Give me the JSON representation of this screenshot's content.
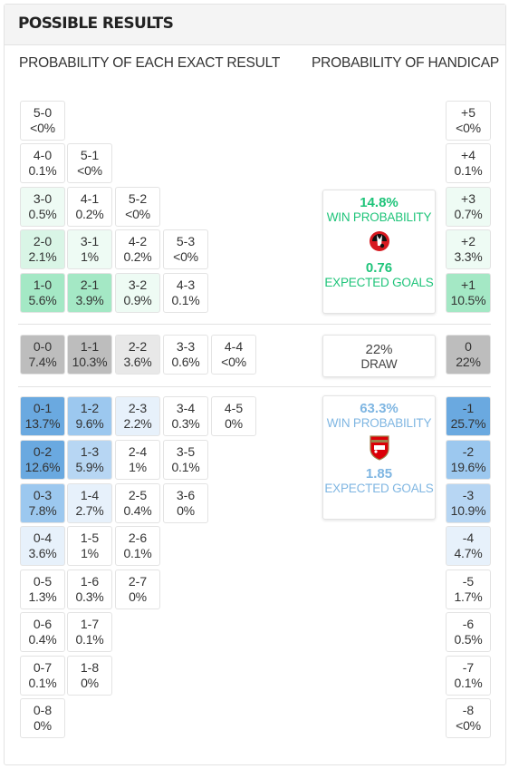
{
  "panel": {
    "title": "POSSIBLE RESULTS"
  },
  "headings": {
    "exact": "PROBABILITY OF EACH EXACT RESULT",
    "handicap": "PROBABILITY OF HANDICAP"
  },
  "colors": {
    "home_accent": "#1fc47a",
    "away_accent": "#7fb6e2",
    "draw_text": "#444444",
    "home_cell_shades": [
      "#ffffff",
      "#eefbf4",
      "#d9f5e6",
      "#a4e8c5"
    ],
    "away_cell_shades": [
      "#ffffff",
      "#e7f1fb",
      "#b7d6f3",
      "#9cc8ef",
      "#6aa9e0"
    ],
    "draw_cell_shades": [
      "#ffffff",
      "#e8e8e8",
      "#bdbdbd"
    ]
  },
  "home_team": {
    "badge_icon": "bournemouth-crest-icon",
    "win_probability": "14.8%",
    "win_label": "WIN PROBABILITY",
    "expected_goals": "0.76",
    "xg_label": "EXPECTED GOALS"
  },
  "draw": {
    "probability": "22%",
    "label": "DRAW"
  },
  "away_team": {
    "badge_icon": "arsenal-crest-icon",
    "win_probability": "63.3%",
    "win_label": "WIN PROBABILITY",
    "expected_goals": "1.85",
    "xg_label": "EXPECTED GOALS"
  },
  "home_scores": [
    [
      {
        "score": "5-0",
        "pct": "<0%",
        "shade": 0
      }
    ],
    [
      {
        "score": "4-0",
        "pct": "0.1%",
        "shade": 0
      },
      {
        "score": "5-1",
        "pct": "<0%",
        "shade": 0
      }
    ],
    [
      {
        "score": "3-0",
        "pct": "0.5%",
        "shade": 1
      },
      {
        "score": "4-1",
        "pct": "0.2%",
        "shade": 0
      },
      {
        "score": "5-2",
        "pct": "<0%",
        "shade": 0
      }
    ],
    [
      {
        "score": "2-0",
        "pct": "2.1%",
        "shade": 2
      },
      {
        "score": "3-1",
        "pct": "1%",
        "shade": 1
      },
      {
        "score": "4-2",
        "pct": "0.2%",
        "shade": 0
      },
      {
        "score": "5-3",
        "pct": "<0%",
        "shade": 0
      }
    ],
    [
      {
        "score": "1-0",
        "pct": "5.6%",
        "shade": 3
      },
      {
        "score": "2-1",
        "pct": "3.9%",
        "shade": 3
      },
      {
        "score": "3-2",
        "pct": "0.9%",
        "shade": 1
      },
      {
        "score": "4-3",
        "pct": "0.1%",
        "shade": 0
      }
    ]
  ],
  "draw_scores": [
    {
      "score": "0-0",
      "pct": "7.4%",
      "shade": 2
    },
    {
      "score": "1-1",
      "pct": "10.3%",
      "shade": 2
    },
    {
      "score": "2-2",
      "pct": "3.6%",
      "shade": 1
    },
    {
      "score": "3-3",
      "pct": "0.6%",
      "shade": 0
    },
    {
      "score": "4-4",
      "pct": "<0%",
      "shade": 0
    }
  ],
  "away_scores": [
    [
      {
        "score": "0-1",
        "pct": "13.7%",
        "shade": 4
      },
      {
        "score": "1-2",
        "pct": "9.6%",
        "shade": 3
      },
      {
        "score": "2-3",
        "pct": "2.2%",
        "shade": 1
      },
      {
        "score": "3-4",
        "pct": "0.3%",
        "shade": 0
      },
      {
        "score": "4-5",
        "pct": "0%",
        "shade": 0
      }
    ],
    [
      {
        "score": "0-2",
        "pct": "12.6%",
        "shade": 4
      },
      {
        "score": "1-3",
        "pct": "5.9%",
        "shade": 2
      },
      {
        "score": "2-4",
        "pct": "1%",
        "shade": 0
      },
      {
        "score": "3-5",
        "pct": "0.1%",
        "shade": 0
      }
    ],
    [
      {
        "score": "0-3",
        "pct": "7.8%",
        "shade": 3
      },
      {
        "score": "1-4",
        "pct": "2.7%",
        "shade": 1
      },
      {
        "score": "2-5",
        "pct": "0.4%",
        "shade": 0
      },
      {
        "score": "3-6",
        "pct": "0%",
        "shade": 0
      }
    ],
    [
      {
        "score": "0-4",
        "pct": "3.6%",
        "shade": 1
      },
      {
        "score": "1-5",
        "pct": "1%",
        "shade": 0
      },
      {
        "score": "2-6",
        "pct": "0.1%",
        "shade": 0
      }
    ],
    [
      {
        "score": "0-5",
        "pct": "1.3%",
        "shade": 0
      },
      {
        "score": "1-6",
        "pct": "0.3%",
        "shade": 0
      },
      {
        "score": "2-7",
        "pct": "0%",
        "shade": 0
      }
    ],
    [
      {
        "score": "0-6",
        "pct": "0.4%",
        "shade": 0
      },
      {
        "score": "1-7",
        "pct": "0.1%",
        "shade": 0
      }
    ],
    [
      {
        "score": "0-7",
        "pct": "0.1%",
        "shade": 0
      },
      {
        "score": "1-8",
        "pct": "0%",
        "shade": 0
      }
    ],
    [
      {
        "score": "0-8",
        "pct": "0%",
        "shade": 0
      }
    ]
  ],
  "handicap_home": [
    {
      "label": "+5",
      "pct": "<0%",
      "shade": 0
    },
    {
      "label": "+4",
      "pct": "0.1%",
      "shade": 0
    },
    {
      "label": "+3",
      "pct": "0.7%",
      "shade": 1
    },
    {
      "label": "+2",
      "pct": "3.3%",
      "shade": 1
    },
    {
      "label": "+1",
      "pct": "10.5%",
      "shade": 3
    }
  ],
  "handicap_draw": {
    "label": "0",
    "pct": "22%",
    "shade": 2
  },
  "handicap_away": [
    {
      "label": "-1",
      "pct": "25.7%",
      "shade": 4
    },
    {
      "label": "-2",
      "pct": "19.6%",
      "shade": 3
    },
    {
      "label": "-3",
      "pct": "10.9%",
      "shade": 2
    },
    {
      "label": "-4",
      "pct": "4.7%",
      "shade": 1
    },
    {
      "label": "-5",
      "pct": "1.7%",
      "shade": 0
    },
    {
      "label": "-6",
      "pct": "0.5%",
      "shade": 0
    },
    {
      "label": "-7",
      "pct": "0.1%",
      "shade": 0
    },
    {
      "label": "-8",
      "pct": "<0%",
      "shade": 0
    }
  ]
}
